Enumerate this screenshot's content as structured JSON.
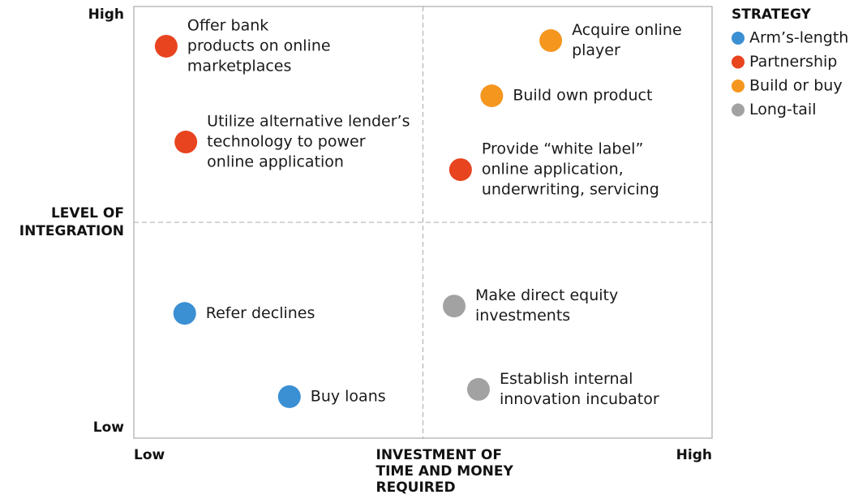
{
  "chart_data": {
    "type": "scatter",
    "x_label": [
      "INVESTMENT OF",
      "TIME AND MONEY",
      "REQUIRED"
    ],
    "y_label": [
      "LEVEL OF",
      "INTEGRATION"
    ],
    "xlim": [
      0,
      10
    ],
    "ylim": [
      0,
      10
    ],
    "xticks": [
      {
        "value": 0,
        "label": "Low"
      },
      {
        "value": 10,
        "label": "High"
      }
    ],
    "yticks": [
      {
        "value": 0,
        "label": "Low"
      },
      {
        "value": 10,
        "label": "High"
      }
    ],
    "legend_title": "STRATEGY",
    "legend": "right",
    "series": [
      {
        "name": "Arm’s-length",
        "color": "#3b8fd3",
        "x": [
          0.88,
          2.69
        ],
        "y": [
          2.89,
          0.96
        ],
        "labels": [
          [
            "Refer declines"
          ],
          [
            "Buy loans"
          ]
        ]
      },
      {
        "name": "Partnership",
        "color": "#e8441f",
        "x": [
          0.56,
          0.9,
          5.65
        ],
        "y": [
          9.08,
          6.86,
          6.22
        ],
        "labels": [
          [
            "Offer bank",
            "products on online",
            "marketplaces"
          ],
          [
            "Utilize alternative lender’s",
            "technology to power",
            "online application"
          ],
          [
            "Provide “white label”",
            "online application,",
            "underwriting, servicing"
          ]
        ]
      },
      {
        "name": "Build or buy",
        "color": "#f5961f",
        "x": [
          7.21,
          6.19
        ],
        "y": [
          9.21,
          7.93
        ],
        "labels": [
          [
            "Acquire online",
            "player"
          ],
          [
            "Build own product"
          ]
        ]
      },
      {
        "name": "Long-tail",
        "color": "#a2a2a2",
        "x": [
          5.54,
          5.96
        ],
        "y": [
          3.06,
          1.13
        ],
        "labels": [
          [
            "Make direct equity",
            "investments"
          ],
          [
            "Establish internal",
            "innovation incubator"
          ]
        ]
      }
    ]
  }
}
